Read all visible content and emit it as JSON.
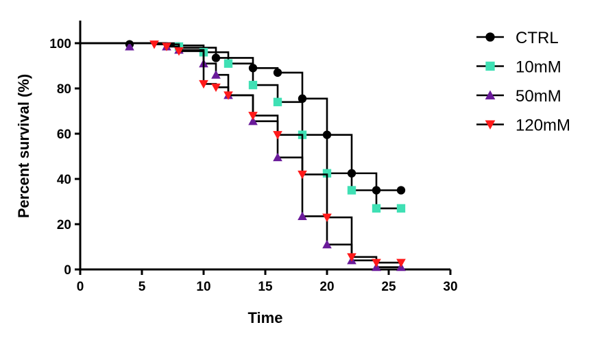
{
  "chart_data": {
    "type": "line",
    "title": "",
    "xlabel": "Time",
    "ylabel": "Percent survival (%)",
    "xlim": [
      0,
      30
    ],
    "ylim": [
      0,
      110
    ],
    "xticks": [
      0,
      5,
      10,
      15,
      20,
      25,
      30
    ],
    "yticks": [
      0,
      20,
      40,
      60,
      80,
      100
    ],
    "grid": false,
    "legend_position": "right",
    "series": [
      {
        "name": "CTRL",
        "color": "#000000",
        "marker": "circle",
        "steps": [
          [
            0,
            100
          ],
          [
            8,
            98
          ],
          [
            11,
            93.5
          ],
          [
            14,
            89
          ],
          [
            16,
            87
          ],
          [
            18,
            75.5
          ],
          [
            20,
            59.5
          ],
          [
            22,
            42.5
          ],
          [
            24,
            35
          ],
          [
            26,
            35
          ]
        ],
        "markers": [
          [
            4,
            99.5
          ],
          [
            11,
            93.5
          ],
          [
            14,
            89
          ],
          [
            16,
            87
          ],
          [
            18,
            75.5
          ],
          [
            20,
            59.5
          ],
          [
            22,
            42.5
          ],
          [
            24,
            35
          ],
          [
            26,
            35
          ]
        ]
      },
      {
        "name": "10mM",
        "color": "#3fe0b4",
        "marker": "square",
        "steps": [
          [
            0,
            100
          ],
          [
            7,
            99
          ],
          [
            10,
            96
          ],
          [
            12,
            91
          ],
          [
            14,
            81.5
          ],
          [
            16,
            74
          ],
          [
            18,
            59.5
          ],
          [
            20,
            42.5
          ],
          [
            22,
            35
          ],
          [
            24,
            27
          ],
          [
            26,
            27
          ]
        ],
        "markers": [
          [
            8,
            98.5
          ],
          [
            10,
            96
          ],
          [
            12,
            91
          ],
          [
            14,
            81.5
          ],
          [
            16,
            74
          ],
          [
            18,
            59.5
          ],
          [
            20,
            42.5
          ],
          [
            22,
            35
          ],
          [
            24,
            27
          ],
          [
            26,
            27
          ]
        ]
      },
      {
        "name": "50mM",
        "color": "#6a1b9a",
        "marker": "triangle-up",
        "steps": [
          [
            0,
            100
          ],
          [
            7,
            98.5
          ],
          [
            8,
            97
          ],
          [
            10,
            91
          ],
          [
            11,
            86
          ],
          [
            12,
            77
          ],
          [
            14,
            65.5
          ],
          [
            16,
            49.5
          ],
          [
            18,
            23.5
          ],
          [
            20,
            11
          ],
          [
            22,
            4
          ],
          [
            24,
            1
          ],
          [
            26,
            1
          ]
        ],
        "markers": [
          [
            4,
            98.5
          ],
          [
            7,
            98.5
          ],
          [
            8,
            97
          ],
          [
            10,
            91
          ],
          [
            11,
            86
          ],
          [
            12,
            77
          ],
          [
            14,
            65.5
          ],
          [
            16,
            49.5
          ],
          [
            18,
            23.5
          ],
          [
            20,
            11
          ],
          [
            22,
            4
          ],
          [
            24,
            1
          ],
          [
            26,
            1
          ]
        ]
      },
      {
        "name": "120mM",
        "color": "#ff1a1a",
        "marker": "triangle-down",
        "steps": [
          [
            0,
            100
          ],
          [
            6,
            99.5
          ],
          [
            8,
            96.5
          ],
          [
            10,
            82
          ],
          [
            11,
            80.5
          ],
          [
            12,
            77
          ],
          [
            14,
            68
          ],
          [
            16,
            59.5
          ],
          [
            18,
            42
          ],
          [
            20,
            23
          ],
          [
            22,
            5.5
          ],
          [
            24,
            3
          ],
          [
            26,
            3
          ]
        ],
        "markers": [
          [
            6,
            99.5
          ],
          [
            7,
            98.5
          ],
          [
            8,
            96.5
          ],
          [
            10,
            82
          ],
          [
            11,
            80.5
          ],
          [
            12,
            77
          ],
          [
            14,
            68
          ],
          [
            16,
            59.5
          ],
          [
            18,
            42
          ],
          [
            20,
            23
          ],
          [
            22,
            5.5
          ],
          [
            24,
            3
          ],
          [
            26,
            3
          ]
        ]
      }
    ]
  }
}
